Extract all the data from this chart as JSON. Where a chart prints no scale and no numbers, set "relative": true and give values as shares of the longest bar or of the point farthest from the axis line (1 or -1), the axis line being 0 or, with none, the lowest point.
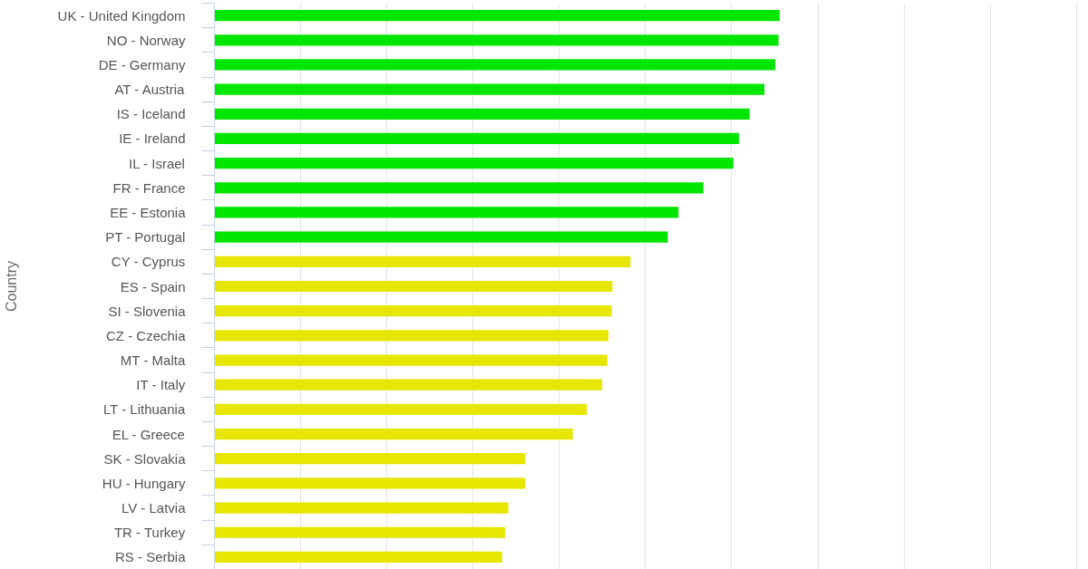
{
  "chart_data": {
    "type": "bar",
    "orientation": "horizontal",
    "relative": true,
    "ylabel": "Country",
    "grid": "x",
    "categories": [
      "UK - United Kingdom",
      "NO - Norway",
      "DE - Germany",
      "AT - Austria",
      "IS - Iceland",
      "IE - Ireland",
      "IL - Israel",
      "FR - France",
      "EE - Estonia",
      "PT - Portugal",
      "CY - Cyprus",
      "ES - Spain",
      "SI - Slovenia",
      "CZ - Czechia",
      "MT - Malta",
      "IT - Italy",
      "LT - Lithuania",
      "EL - Greece",
      "SK - Slovakia",
      "HU - Hungary",
      "LV - Latvia",
      "TR - Turkey",
      "RS - Serbia"
    ],
    "values": [
      1.0,
      0.998,
      0.992,
      0.973,
      0.947,
      0.928,
      0.918,
      0.865,
      0.821,
      0.802,
      0.736,
      0.704,
      0.703,
      0.697,
      0.695,
      0.686,
      0.659,
      0.634,
      0.55,
      0.55,
      0.52,
      0.514,
      0.509
    ],
    "colors": [
      "#00e600",
      "#00e600",
      "#00e600",
      "#00e600",
      "#00e600",
      "#00e600",
      "#00e600",
      "#00e600",
      "#00e600",
      "#00e600",
      "#e6e600",
      "#e6e600",
      "#e6e600",
      "#e6e600",
      "#e6e600",
      "#e6e600",
      "#e6e600",
      "#e6e600",
      "#e6e600",
      "#e6e600",
      "#e6e600",
      "#e6e600",
      "#e6e600"
    ]
  }
}
